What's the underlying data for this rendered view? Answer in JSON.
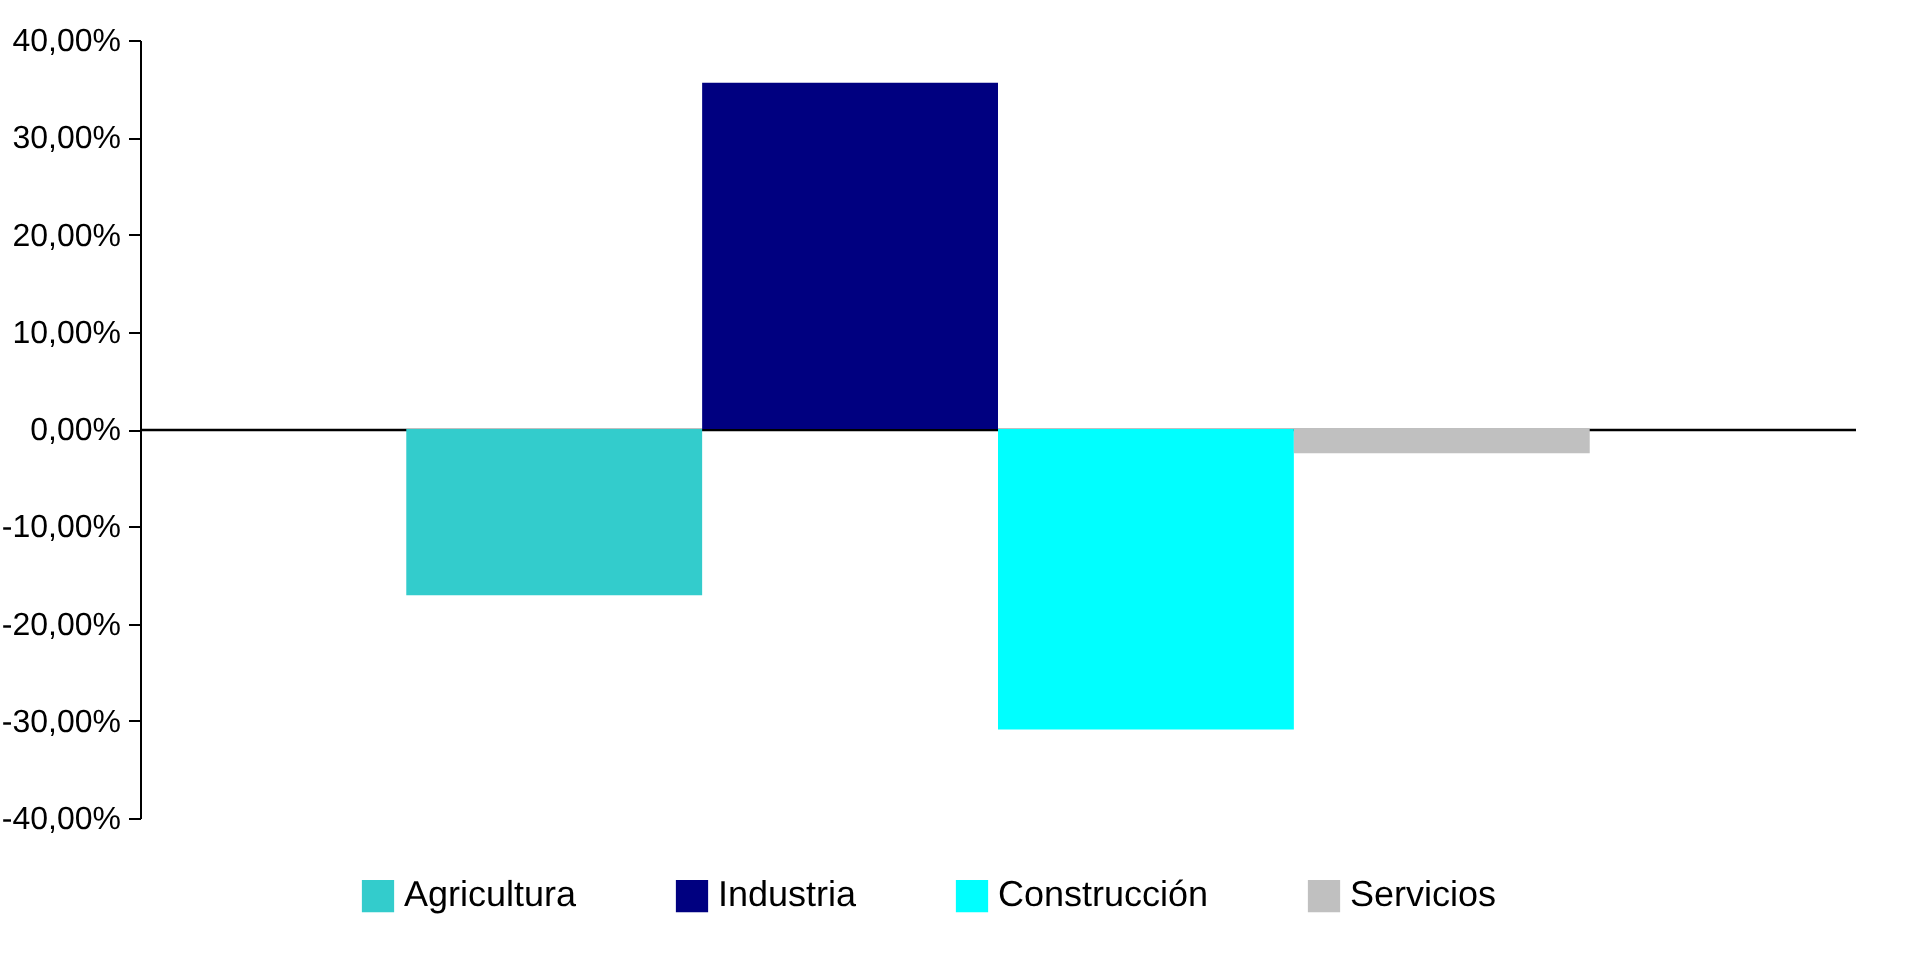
{
  "chart_data": {
    "type": "bar",
    "categories": [
      null
    ],
    "series": [
      {
        "name": "Agricultura",
        "color": "#33cccc",
        "values": [
          -17.1
        ]
      },
      {
        "name": "Industria",
        "color": "#000080",
        "values": [
          35.6
        ]
      },
      {
        "name": "Construcción",
        "color": "#00ffff",
        "values": [
          -30.9
        ]
      },
      {
        "name": "Servicios",
        "color": "#c0c0c0",
        "values": [
          -2.5
        ]
      }
    ],
    "ylim": [
      -40,
      40
    ],
    "yticks": [
      {
        "value": -40,
        "label": "-40,00%"
      },
      {
        "value": -30,
        "label": "-30,00%"
      },
      {
        "value": -20,
        "label": "-20,00%"
      },
      {
        "value": -10,
        "label": "-10,00%"
      },
      {
        "value": 0,
        "label": "0,00%"
      },
      {
        "value": 10,
        "label": "10,00%"
      },
      {
        "value": 20,
        "label": "20,00%"
      },
      {
        "value": 30,
        "label": "30,00%"
      },
      {
        "value": 40,
        "label": "40,00%"
      }
    ],
    "legend": "bottom",
    "tick_labels": "y"
  }
}
